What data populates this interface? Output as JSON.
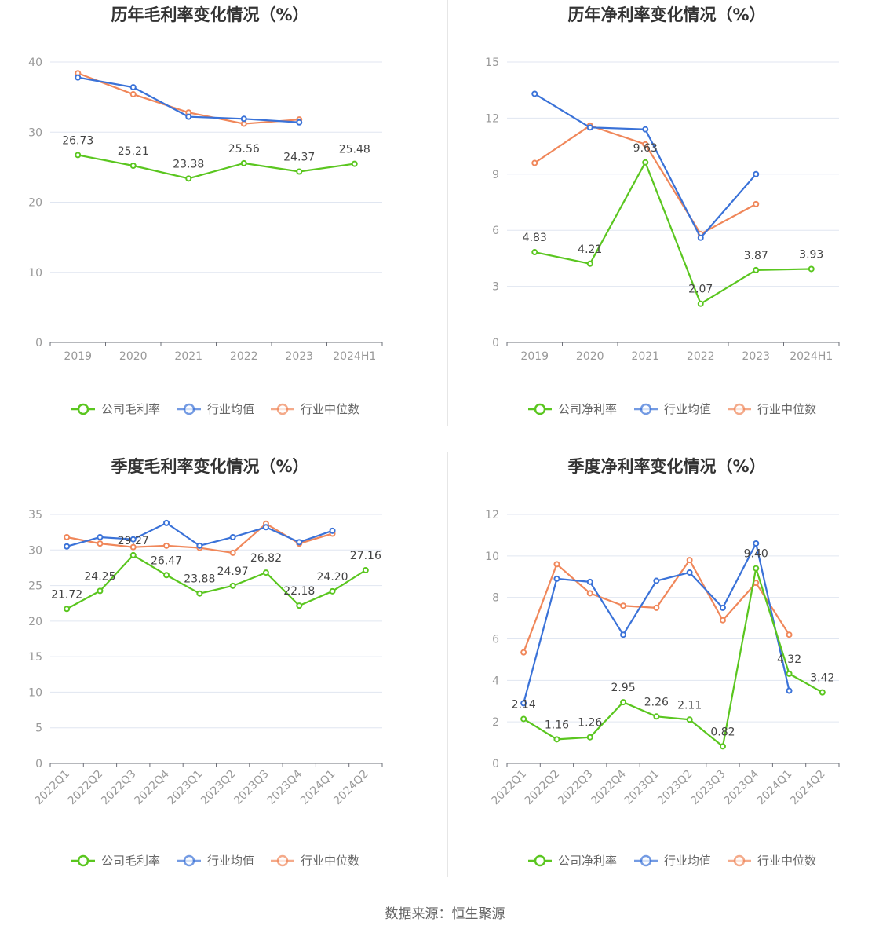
{
  "source": "数据来源：恒生聚源",
  "colors": {
    "company": "#5ac61f",
    "industry_avg": "#3a72d8",
    "industry_median": "#f0875a",
    "grid": "#e0e6f1",
    "axis": "#6e7079"
  },
  "chart_data": [
    {
      "id": "annual-gross",
      "type": "line",
      "title": "历年毛利率变化情况（%）",
      "categories": [
        "2019",
        "2020",
        "2021",
        "2022",
        "2023",
        "2024H1"
      ],
      "ylim": [
        0,
        40
      ],
      "yticks": [
        0,
        10,
        20,
        30,
        40
      ],
      "grid": true,
      "legend_position": "bottom",
      "rotate_x_labels": false,
      "series": [
        {
          "key": "company",
          "name": "公司毛利率",
          "values": [
            26.73,
            25.21,
            23.38,
            25.56,
            24.37,
            25.48
          ],
          "labels": [
            "26.73",
            "25.21",
            "23.38",
            "25.56",
            "24.37",
            "25.48"
          ]
        },
        {
          "key": "industry_avg",
          "name": "行业均值",
          "values": [
            37.8,
            36.4,
            32.2,
            31.9,
            31.4,
            null
          ]
        },
        {
          "key": "industry_median",
          "name": "行业中位数",
          "values": [
            38.4,
            35.4,
            32.8,
            31.2,
            31.8,
            null
          ]
        }
      ]
    },
    {
      "id": "annual-net",
      "type": "line",
      "title": "历年净利率变化情况（%）",
      "categories": [
        "2019",
        "2020",
        "2021",
        "2022",
        "2023",
        "2024H1"
      ],
      "ylim": [
        0,
        15
      ],
      "yticks": [
        0,
        3,
        6,
        9,
        12,
        15
      ],
      "grid": true,
      "legend_position": "bottom",
      "rotate_x_labels": false,
      "series": [
        {
          "key": "company",
          "name": "公司净利率",
          "values": [
            4.83,
            4.21,
            9.63,
            2.07,
            3.87,
            3.93
          ],
          "labels": [
            "4.83",
            "4.21",
            "9.63",
            "2.07",
            "3.87",
            "3.93"
          ]
        },
        {
          "key": "industry_avg",
          "name": "行业均值",
          "values": [
            13.3,
            11.5,
            11.4,
            5.6,
            9.0,
            null
          ]
        },
        {
          "key": "industry_median",
          "name": "行业中位数",
          "values": [
            9.6,
            11.6,
            10.6,
            5.8,
            7.4,
            null
          ]
        }
      ]
    },
    {
      "id": "quarterly-gross",
      "type": "line",
      "title": "季度毛利率变化情况（%）",
      "categories": [
        "2022Q1",
        "2022Q2",
        "2022Q3",
        "2022Q4",
        "2023Q1",
        "2023Q2",
        "2023Q3",
        "2023Q4",
        "2024Q1",
        "2024Q2"
      ],
      "ylim": [
        0,
        35
      ],
      "yticks": [
        0,
        5,
        10,
        15,
        20,
        25,
        30,
        35
      ],
      "grid": true,
      "legend_position": "bottom",
      "rotate_x_labels": true,
      "series": [
        {
          "key": "company",
          "name": "公司毛利率",
          "values": [
            21.72,
            24.25,
            29.27,
            26.47,
            23.88,
            24.97,
            26.82,
            22.18,
            24.2,
            27.16
          ],
          "labels": [
            "21.72",
            "24.25",
            "29.27",
            "26.47",
            "23.88",
            "24.97",
            "26.82",
            "22.18",
            "24.20",
            "27.16"
          ]
        },
        {
          "key": "industry_avg",
          "name": "行业均值",
          "values": [
            30.5,
            31.8,
            31.5,
            33.8,
            30.6,
            31.8,
            33.2,
            31.1,
            32.7,
            null
          ]
        },
        {
          "key": "industry_median",
          "name": "行业中位数",
          "values": [
            31.8,
            30.9,
            30.4,
            30.6,
            30.3,
            29.6,
            33.7,
            30.9,
            32.3,
            null
          ]
        }
      ]
    },
    {
      "id": "quarterly-net",
      "type": "line",
      "title": "季度净利率变化情况（%）",
      "categories": [
        "2022Q1",
        "2022Q2",
        "2022Q3",
        "2022Q4",
        "2023Q1",
        "2023Q2",
        "2023Q3",
        "2023Q4",
        "2024Q1",
        "2024Q2"
      ],
      "ylim": [
        0,
        12
      ],
      "yticks": [
        0,
        2,
        4,
        6,
        8,
        10,
        12
      ],
      "grid": true,
      "legend_position": "bottom",
      "rotate_x_labels": true,
      "series": [
        {
          "key": "company",
          "name": "公司净利率",
          "values": [
            2.14,
            1.16,
            1.26,
            2.95,
            2.26,
            2.11,
            0.82,
            9.4,
            4.32,
            3.42
          ],
          "labels": [
            "2.14",
            "1.16",
            "1.26",
            "2.95",
            "2.26",
            "2.11",
            "0.82",
            "9.40",
            "4.32",
            "3.42"
          ]
        },
        {
          "key": "industry_avg",
          "name": "行业均值",
          "values": [
            2.9,
            8.9,
            8.75,
            6.2,
            8.8,
            9.2,
            7.5,
            10.6,
            3.5,
            null
          ]
        },
        {
          "key": "industry_median",
          "name": "行业中位数",
          "values": [
            5.35,
            9.6,
            8.2,
            7.6,
            7.5,
            9.8,
            6.9,
            8.7,
            6.2,
            null
          ]
        }
      ]
    }
  ]
}
